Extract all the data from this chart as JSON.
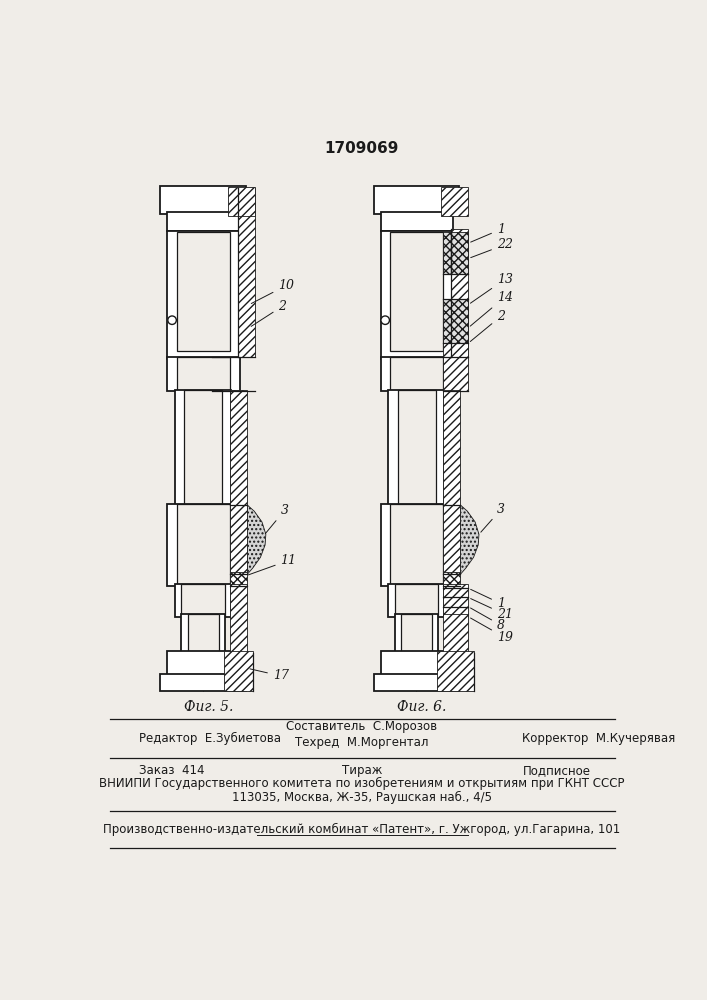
{
  "title": "1709069",
  "fig5_label": "Фиг. 5.",
  "fig6_label": "Фиг. 6.",
  "footer_sestavitel": "Составитель  С.Морозов",
  "footer_redaktor": "Редактор  Е.Зубиетова",
  "footer_tehred": "Техред  М.Моргентал",
  "footer_korrektor": "Корректор  М.Кучерявая",
  "footer_zakaz": "Заказ  414",
  "footer_tirazh": "Тираж",
  "footer_podpisnoe": "Подписное",
  "footer_vniipи": "ВНИИПИ Государственного комитета по изобретениям и открытиям при ГКНТ СССР",
  "footer_address": "113035, Москва, Ж-35, Раушская наб., 4/5",
  "footer_patent": "Производственно-издательский комбинат «Патент», г. Ужгород, ул.Гагарина, 101",
  "bg_color": "#f0ede8"
}
